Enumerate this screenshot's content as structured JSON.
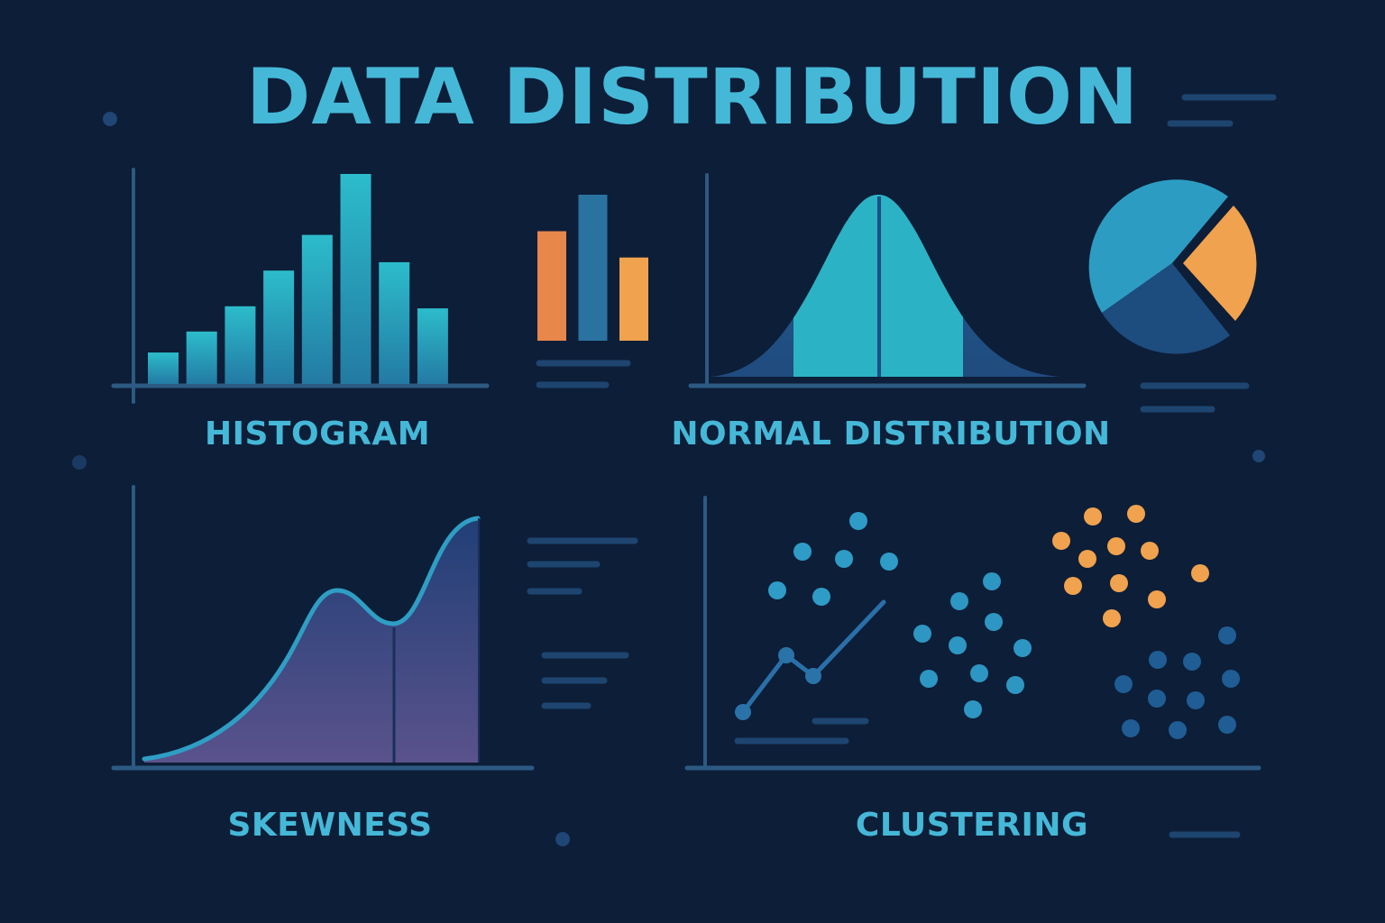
{
  "title": "DATA DISTRIBUTION",
  "colors": {
    "background": "#0d1e38",
    "title": "#45b8d8",
    "axis": "#2d5a82",
    "teal": "#2ab5c6",
    "blue": "#2a73a0",
    "orange": "#f0a24e",
    "navy": "#1e4a7a",
    "purple": "#5c5590"
  },
  "panels": {
    "histogram": {
      "label": "HISTOGRAM",
      "bar_levels": [
        0.15,
        0.25,
        0.37,
        0.54,
        0.71,
        1.0,
        0.58,
        0.36
      ],
      "side_bar_levels": [
        0.75,
        1.0,
        0.57
      ],
      "side_bar_colors": [
        "orange",
        "blue",
        "orange"
      ]
    },
    "normal": {
      "label": "NORMAL DISTRIBUTION",
      "pie_colors": [
        "teal",
        "navy",
        "orange"
      ]
    },
    "skewness": {
      "label": "SKEWNESS"
    },
    "clustering": {
      "label": "CLUSTERING"
    }
  }
}
